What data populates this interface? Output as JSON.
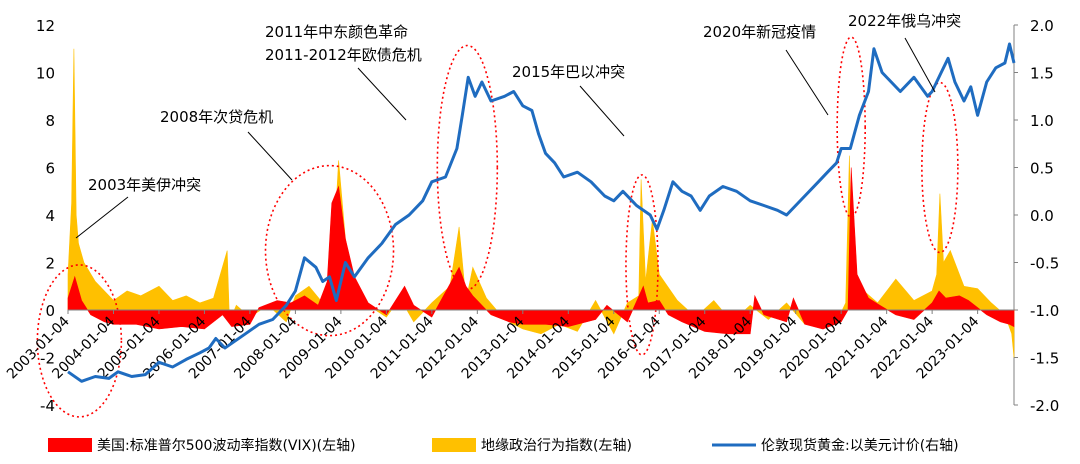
{
  "chart_data": {
    "type": "line",
    "left_axis": {
      "ylim": [
        -4,
        12
      ],
      "ticks": [
        -4,
        -2,
        0,
        2,
        4,
        6,
        8,
        10,
        12
      ],
      "tick_labels": [
        "-4",
        "-2",
        "0",
        "2",
        "4",
        "6",
        "8",
        "10",
        "12"
      ]
    },
    "right_axis": {
      "ylim": [
        -2.0,
        2.0
      ],
      "ticks": [
        -2.0,
        -1.5,
        -1.0,
        -0.5,
        0.0,
        0.5,
        1.0,
        1.5,
        2.0
      ],
      "tick_labels": [
        "-2.0",
        "-1.5",
        "-1.0",
        "-0.5",
        "0.0",
        "0.5",
        "1.0",
        "1.5",
        "2.0"
      ]
    },
    "x_range": [
      2003.0,
      2023.8
    ],
    "x_ticks": [
      2003,
      2004,
      2005,
      2006,
      2007,
      2008,
      2009,
      2010,
      2011,
      2012,
      2013,
      2014,
      2015,
      2016,
      2017,
      2018,
      2019,
      2020,
      2021,
      2022,
      2023
    ],
    "x_tick_labels": [
      "2003-01-04",
      "2004-01-04",
      "2005-01-04",
      "2006-01-04",
      "2007-01-04",
      "2008-01-04",
      "2009-01-04",
      "2010-01-04",
      "2011-01-04",
      "2012-01-04",
      "2013-01-04",
      "2014-01-04",
      "2015-01-04",
      "2016-01-04",
      "2017-01-04",
      "2018-01-04",
      "2019-01-04",
      "2020-01-04",
      "2021-01-04",
      "2022-01-04",
      "2023-01-04"
    ],
    "series": [
      {
        "name": "美国:标准普尔500波动率指数(VIX)(左轴)",
        "axis": "left",
        "kind": "area",
        "color": "#ff0000",
        "x": [
          2003.0,
          2003.15,
          2003.3,
          2003.5,
          2003.8,
          2004.0,
          2004.5,
          2005.0,
          2005.5,
          2006.0,
          2006.4,
          2006.6,
          2007.0,
          2007.2,
          2007.6,
          2007.9,
          2008.2,
          2008.5,
          2008.7,
          2008.8,
          2008.95,
          2009.1,
          2009.3,
          2009.6,
          2010.0,
          2010.4,
          2010.6,
          2011.0,
          2011.6,
          2011.75,
          2011.9,
          2012.3,
          2012.7,
          2013.0,
          2013.5,
          2014.0,
          2014.6,
          2014.85,
          2015.3,
          2015.65,
          2015.75,
          2016.0,
          2016.2,
          2016.5,
          2017.0,
          2017.5,
          2018.0,
          2018.1,
          2018.3,
          2018.8,
          2018.95,
          2019.2,
          2019.6,
          2020.0,
          2020.15,
          2020.22,
          2020.35,
          2020.6,
          2020.85,
          2021.2,
          2021.6,
          2022.0,
          2022.15,
          2022.3,
          2022.6,
          2022.8,
          2023.0,
          2023.2,
          2023.5,
          2023.7,
          2023.8
        ],
        "values": [
          0.5,
          1.4,
          0.4,
          -0.2,
          -0.5,
          -0.6,
          -0.6,
          -0.8,
          -0.7,
          -0.8,
          -0.2,
          -0.7,
          -0.6,
          0.1,
          0.4,
          0.3,
          0.6,
          0.2,
          1.2,
          4.5,
          5.2,
          3.0,
          1.4,
          0.3,
          -0.2,
          1.0,
          0.2,
          -0.3,
          1.8,
          1.0,
          0.6,
          -0.2,
          -0.5,
          -0.6,
          -0.6,
          -0.7,
          -0.4,
          0.2,
          -0.5,
          1.0,
          0.3,
          0.4,
          -0.2,
          -0.5,
          -0.9,
          -1.0,
          -1.0,
          0.6,
          -0.2,
          -0.5,
          0.5,
          -0.6,
          -0.8,
          -0.5,
          0.0,
          6.0,
          1.5,
          0.5,
          0.2,
          -0.2,
          -0.4,
          0.3,
          0.8,
          0.5,
          0.6,
          0.4,
          0.1,
          -0.2,
          -0.5,
          -0.6,
          -0.7
        ]
      },
      {
        "name": "地缘政治行为指数(左轴)",
        "axis": "left",
        "kind": "area",
        "color": "#ffc000",
        "x": [
          2003.0,
          2003.08,
          2003.13,
          2003.18,
          2003.23,
          2003.35,
          2003.6,
          2003.8,
          2004.0,
          2004.3,
          2004.6,
          2005.0,
          2005.3,
          2005.6,
          2005.9,
          2006.2,
          2006.5,
          2006.55,
          2006.7,
          2007.0,
          2007.4,
          2007.8,
          2008.0,
          2008.3,
          2008.6,
          2008.8,
          2008.95,
          2009.1,
          2009.3,
          2009.6,
          2010.0,
          2010.3,
          2010.6,
          2011.0,
          2011.4,
          2011.6,
          2011.75,
          2011.9,
          2012.2,
          2012.6,
          2013.0,
          2013.4,
          2013.8,
          2014.2,
          2014.6,
          2015.0,
          2015.3,
          2015.55,
          2015.6,
          2015.7,
          2015.85,
          2016.0,
          2016.4,
          2016.8,
          2017.2,
          2017.6,
          2018.0,
          2018.4,
          2018.8,
          2019.2,
          2019.6,
          2019.9,
          2020.1,
          2020.18,
          2020.22,
          2020.3,
          2020.5,
          2020.8,
          2021.2,
          2021.6,
          2022.0,
          2022.1,
          2022.17,
          2022.25,
          2022.4,
          2022.7,
          2023.0,
          2023.3,
          2023.6,
          2023.75,
          2023.8
        ],
        "values": [
          1.5,
          4.5,
          11.0,
          4.0,
          2.8,
          2.0,
          1.2,
          0.8,
          0.4,
          0.8,
          0.6,
          1.0,
          0.4,
          0.6,
          0.3,
          0.5,
          2.5,
          -0.5,
          0.2,
          -0.3,
          0.2,
          -0.5,
          0.6,
          1.0,
          0.3,
          1.2,
          6.3,
          3.0,
          1.0,
          0.2,
          -0.3,
          0.5,
          -0.5,
          0.3,
          1.0,
          3.5,
          0.4,
          1.8,
          0.5,
          -0.4,
          -0.8,
          -1.0,
          -0.6,
          -0.9,
          0.4,
          -1.0,
          0.3,
          0.6,
          5.5,
          1.2,
          3.8,
          1.5,
          0.4,
          -0.3,
          0.4,
          -0.5,
          0.2,
          -0.4,
          0.3,
          -0.6,
          -0.2,
          -0.5,
          0.3,
          6.5,
          2.5,
          1.0,
          0.8,
          0.3,
          1.3,
          0.4,
          0.8,
          1.5,
          4.9,
          2.0,
          2.5,
          1.0,
          0.9,
          0.3,
          -0.2,
          -1.0,
          -2.0
        ]
      },
      {
        "name": "伦敦现货黄金:以美元计价(右轴)",
        "axis": "right",
        "kind": "line",
        "color": "#1f6cc0",
        "x": [
          2003.0,
          2003.3,
          2003.6,
          2003.9,
          2004.1,
          2004.4,
          2004.7,
          2005.0,
          2005.3,
          2005.6,
          2005.9,
          2006.1,
          2006.25,
          2006.45,
          2006.6,
          2006.9,
          2007.2,
          2007.5,
          2007.8,
          2008.0,
          2008.2,
          2008.45,
          2008.6,
          2008.75,
          2008.9,
          2009.1,
          2009.3,
          2009.6,
          2009.9,
          2010.2,
          2010.5,
          2010.8,
          2011.0,
          2011.3,
          2011.55,
          2011.67,
          2011.8,
          2011.95,
          2012.1,
          2012.3,
          2012.6,
          2012.8,
          2013.0,
          2013.2,
          2013.35,
          2013.5,
          2013.7,
          2013.9,
          2014.2,
          2014.5,
          2014.8,
          2015.0,
          2015.2,
          2015.5,
          2015.8,
          2015.95,
          2016.1,
          2016.3,
          2016.5,
          2016.7,
          2016.9,
          2017.1,
          2017.4,
          2017.7,
          2018.0,
          2018.3,
          2018.6,
          2018.8,
          2019.0,
          2019.2,
          2019.5,
          2019.7,
          2019.9,
          2020.0,
          2020.2,
          2020.4,
          2020.6,
          2020.72,
          2020.9,
          2021.1,
          2021.3,
          2021.6,
          2021.9,
          2022.0,
          2022.2,
          2022.35,
          2022.5,
          2022.7,
          2022.85,
          2023.0,
          2023.2,
          2023.4,
          2023.6,
          2023.7,
          2023.8
        ],
        "values": [
          -1.65,
          -1.75,
          -1.7,
          -1.72,
          -1.65,
          -1.7,
          -1.68,
          -1.55,
          -1.6,
          -1.52,
          -1.45,
          -1.4,
          -1.3,
          -1.4,
          -1.35,
          -1.25,
          -1.15,
          -1.1,
          -0.95,
          -0.8,
          -0.45,
          -0.55,
          -0.7,
          -0.65,
          -0.9,
          -0.5,
          -0.65,
          -0.45,
          -0.3,
          -0.1,
          0.0,
          0.15,
          0.35,
          0.4,
          0.7,
          1.05,
          1.45,
          1.25,
          1.4,
          1.2,
          1.25,
          1.3,
          1.15,
          1.1,
          0.85,
          0.65,
          0.55,
          0.4,
          0.45,
          0.35,
          0.2,
          0.15,
          0.25,
          0.1,
          0.0,
          -0.15,
          0.05,
          0.35,
          0.25,
          0.2,
          0.05,
          0.2,
          0.3,
          0.25,
          0.15,
          0.1,
          0.05,
          0.0,
          0.1,
          0.2,
          0.35,
          0.45,
          0.55,
          0.7,
          0.7,
          1.05,
          1.3,
          1.75,
          1.5,
          1.4,
          1.3,
          1.45,
          1.25,
          1.3,
          1.5,
          1.65,
          1.4,
          1.2,
          1.35,
          1.05,
          1.4,
          1.55,
          1.6,
          1.8,
          1.6
        ]
      }
    ],
    "annotations": [
      "2003年美伊冲突",
      "2008年次贷危机",
      "2011年中东颜色革命",
      "2011-2012年欧债危机",
      "2015年巴以冲突",
      "2020年新冠疫情",
      "2022年俄乌冲突"
    ]
  }
}
